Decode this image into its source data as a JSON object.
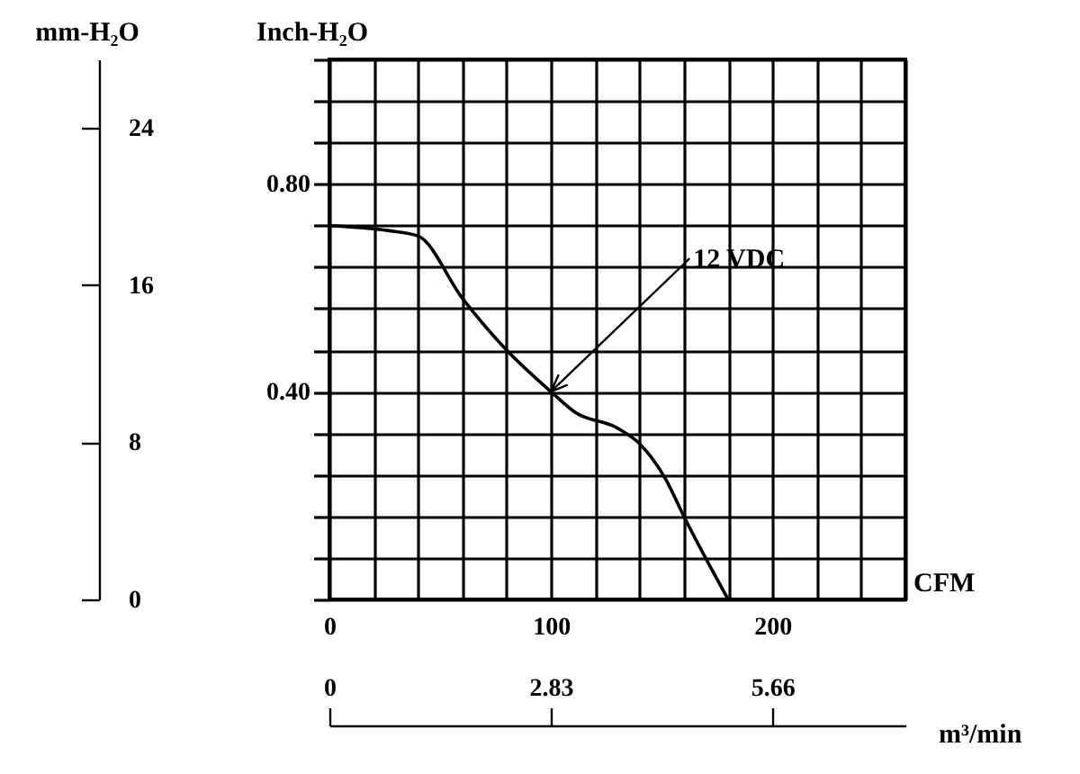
{
  "chart_data": {
    "type": "line",
    "xlabel": "CFM",
    "ylabel": "Inch-H₂O",
    "y2label": "mm-H₂O",
    "x2label": "m³/min",
    "x": [
      0,
      27,
      40,
      60,
      80,
      100,
      111,
      130,
      140,
      152,
      160,
      180
    ],
    "series": [
      {
        "name": "12 VDC",
        "color": "#000000",
        "values": [
          0.72,
          0.71,
          0.7,
          0.58,
          0.48,
          0.4,
          0.36,
          0.33,
          0.3,
          0.23,
          0.16,
          0
        ]
      }
    ],
    "xlim": [
      0,
      260
    ],
    "xticks": [
      0,
      {
        "value": 20,
        "label": null
      },
      {
        "value": 40,
        "label": null
      },
      {
        "value": 60,
        "label": null
      },
      {
        "value": 80,
        "label": null
      },
      100,
      {
        "value": 120,
        "label": null
      },
      {
        "value": 140,
        "label": null
      },
      {
        "value": 160,
        "label": null
      },
      {
        "value": 180,
        "label": null
      },
      200,
      {
        "value": 220,
        "label": null
      },
      {
        "value": 240,
        "label": null
      },
      {
        "value": 260,
        "label": null
      }
    ],
    "ylim": [
      0,
      1.04
    ],
    "yticks": [
      {
        "value": 0,
        "label": null
      },
      {
        "value": 0.08,
        "label": null
      },
      {
        "value": 0.16,
        "label": null
      },
      {
        "value": 0.24,
        "label": null
      },
      {
        "value": 0.32,
        "label": null
      },
      {
        "value": 0.4,
        "label": "0.40"
      },
      {
        "value": 0.48,
        "label": null
      },
      {
        "value": 0.56,
        "label": null
      },
      {
        "value": 0.64,
        "label": null
      },
      {
        "value": 0.72,
        "label": null
      },
      {
        "value": 0.8,
        "label": "0.80"
      },
      {
        "value": 0.88,
        "label": null
      },
      {
        "value": 0.96,
        "label": null
      },
      {
        "value": 1.04,
        "label": null
      }
    ],
    "y2lim": [
      0,
      27.5
    ],
    "y2ticks": [
      0,
      8,
      16,
      24
    ],
    "x2lim": [
      0,
      7.36
    ],
    "x2ticks": [
      0,
      2.83,
      5.66
    ],
    "grid": true,
    "marker": "none",
    "line_style": "solid"
  }
}
